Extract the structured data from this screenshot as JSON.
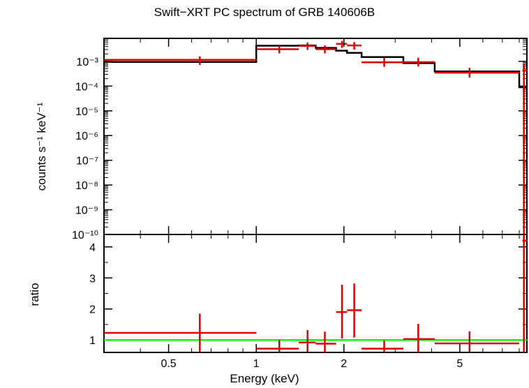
{
  "chart_data": [
    {
      "type": "line",
      "panel": "spectrum",
      "title": "Swift−XRT PC spectrum of GRB 140606B",
      "ylabel": "counts s⁻¹ keV⁻¹",
      "yscale": "log",
      "xscale": "log",
      "ylim": [
        1e-10,
        0.0085
      ],
      "xlim": [
        0.3,
        8.5
      ],
      "ytick_labels": [
        "10⁻¹⁰",
        "10⁻⁹",
        "10⁻⁸",
        "10⁻⁷",
        "10⁻⁶",
        "10⁻⁵",
        "10⁻⁴",
        "10⁻³"
      ],
      "ytick_values": [
        1e-10,
        1e-09,
        1e-08,
        1e-07,
        1e-06,
        1e-05,
        0.0001,
        0.001
      ],
      "series": [
        {
          "kind": "data",
          "color": "#e00000",
          "points": [
            {
              "x": 0.64,
              "xlo": 0.3,
              "xhi": 1.0,
              "y": 0.00115,
              "ylo": 0.00072,
              "yhi": 0.0016
            },
            {
              "x": 1.2,
              "xlo": 1.0,
              "xhi": 1.4,
              "y": 0.0031,
              "ylo": 0.0021,
              "yhi": 0.0043
            },
            {
              "x": 1.5,
              "xlo": 1.4,
              "xhi": 1.6,
              "y": 0.0042,
              "ylo": 0.0029,
              "yhi": 0.0058
            },
            {
              "x": 1.72,
              "xlo": 1.6,
              "xhi": 1.88,
              "y": 0.0031,
              "ylo": 0.0021,
              "yhi": 0.0044
            },
            {
              "x": 1.97,
              "xlo": 1.88,
              "xhi": 2.05,
              "y": 0.0051,
              "ylo": 0.0035,
              "yhi": 0.0068
            },
            {
              "x": 2.17,
              "xlo": 2.05,
              "xhi": 2.3,
              "y": 0.0044,
              "ylo": 0.003,
              "yhi": 0.006
            },
            {
              "x": 2.75,
              "xlo": 2.3,
              "xhi": 3.2,
              "y": 0.00092,
              "ylo": 0.0006,
              "yhi": 0.0014
            },
            {
              "x": 3.6,
              "xlo": 3.2,
              "xhi": 4.1,
              "y": 0.00093,
              "ylo": 0.00062,
              "yhi": 0.0014
            },
            {
              "x": 5.4,
              "xlo": 4.1,
              "xhi": 8.0,
              "y": 0.00035,
              "ylo": 0.00022,
              "yhi": 0.00055
            },
            {
              "x": 8.3,
              "xlo": 8.2,
              "xhi": 8.5,
              "y": 0.00042,
              "ylo": 1e-10,
              "yhi": 0.0008
            }
          ]
        },
        {
          "kind": "model",
          "color": "#000000",
          "steps": [
            {
              "x0": 0.3,
              "x1": 1.0,
              "y": 0.00095
            },
            {
              "x0": 1.0,
              "x1": 1.4,
              "y": 0.0043
            },
            {
              "x0": 1.4,
              "x1": 1.6,
              "y": 0.0044
            },
            {
              "x0": 1.6,
              "x1": 1.88,
              "y": 0.0035
            },
            {
              "x0": 1.88,
              "x1": 2.05,
              "y": 0.0027
            },
            {
              "x0": 2.05,
              "x1": 2.3,
              "y": 0.0022
            },
            {
              "x0": 2.3,
              "x1": 3.2,
              "y": 0.0015
            },
            {
              "x0": 3.2,
              "x1": 4.1,
              "y": 0.00085
            },
            {
              "x0": 4.1,
              "x1": 8.0,
              "y": 0.00039
            },
            {
              "x0": 8.0,
              "x1": 8.5,
              "y": 9e-05
            }
          ]
        }
      ]
    },
    {
      "type": "scatter",
      "panel": "ratio",
      "ylabel": "ratio",
      "xlabel": "Energy (keV)",
      "xscale": "log",
      "xlim": [
        0.3,
        8.5
      ],
      "ylim": [
        0.6,
        4.4
      ],
      "ytick_labels": [
        "1",
        "2",
        "3",
        "4"
      ],
      "ytick_values": [
        1,
        2,
        3,
        4
      ],
      "xtick_labels": [
        "0.5",
        "1",
        "2",
        "5"
      ],
      "xtick_values": [
        0.5,
        1,
        2,
        5
      ],
      "reference_line": {
        "y": 1,
        "color": "#00ff00"
      },
      "points": [
        {
          "x": 0.64,
          "xlo": 0.3,
          "xhi": 1.0,
          "y": 1.23,
          "ylo": 0.6,
          "yhi": 1.85
        },
        {
          "x": 1.2,
          "xlo": 1.0,
          "xhi": 1.4,
          "y": 0.72,
          "ylo": 0.6,
          "yhi": 1.0
        },
        {
          "x": 1.5,
          "xlo": 1.4,
          "xhi": 1.6,
          "y": 0.92,
          "ylo": 0.6,
          "yhi": 1.32
        },
        {
          "x": 1.72,
          "xlo": 1.6,
          "xhi": 1.88,
          "y": 0.88,
          "ylo": 0.6,
          "yhi": 1.27
        },
        {
          "x": 1.97,
          "xlo": 1.88,
          "xhi": 2.05,
          "y": 1.9,
          "ylo": 1.05,
          "yhi": 2.78
        },
        {
          "x": 2.17,
          "xlo": 2.05,
          "xhi": 2.3,
          "y": 1.96,
          "ylo": 1.08,
          "yhi": 2.82
        },
        {
          "x": 2.75,
          "xlo": 2.3,
          "xhi": 3.2,
          "y": 0.72,
          "ylo": 0.6,
          "yhi": 0.98
        },
        {
          "x": 3.6,
          "xlo": 3.2,
          "xhi": 4.1,
          "y": 1.03,
          "ylo": 0.6,
          "yhi": 1.52
        },
        {
          "x": 5.4,
          "xlo": 4.1,
          "xhi": 8.0,
          "y": 0.89,
          "ylo": 0.6,
          "yhi": 1.28
        },
        {
          "x": 8.3,
          "xlo": 8.2,
          "xhi": 8.5,
          "y": 4.2,
          "ylo": 0.6,
          "yhi": 4.4
        }
      ]
    }
  ]
}
